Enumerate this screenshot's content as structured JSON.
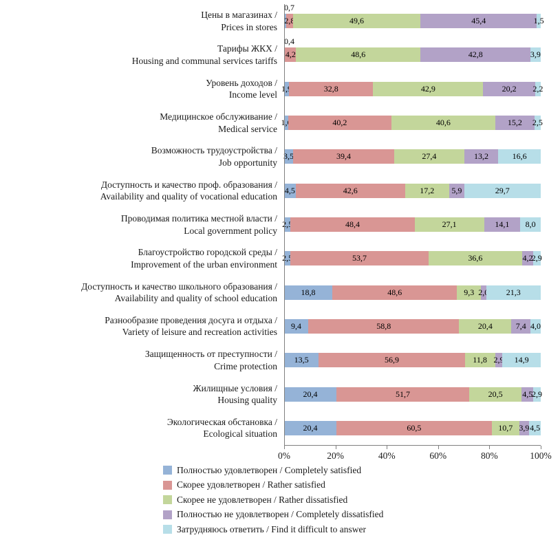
{
  "chart_data": {
    "type": "bar",
    "stacked": true,
    "orientation": "horizontal",
    "unit": "%",
    "xlim": [
      0,
      100
    ],
    "grid": false,
    "legend_position": "bottom-left",
    "decimal_separator": ",",
    "x_ticks": [
      "0%",
      "20%",
      "40%",
      "60%",
      "80%",
      "100%"
    ],
    "categories": [
      {
        "ru": "Цены в магазинах /",
        "en": "Prices in stores"
      },
      {
        "ru": "Тарифы ЖКХ /",
        "en": "Housing and communal services tariffs"
      },
      {
        "ru": "Уровень доходов /",
        "en": "Income level"
      },
      {
        "ru": "Медицинское обслуживание /",
        "en": "Medical service"
      },
      {
        "ru": "Возможность трудоустройства /",
        "en": "Job opportunity"
      },
      {
        "ru": "Доступность и качество проф. образования /",
        "en": "Availability and quality of vocational education"
      },
      {
        "ru": "Проводимая политика местной власти /",
        "en": "Local government policy"
      },
      {
        "ru": "Благоустройство городской среды /",
        "en": "Improvement of the urban environment"
      },
      {
        "ru": "Доступность и качество школьного образования /",
        "en": "Availability and quality of school education"
      },
      {
        "ru": "Разнообразие проведения досуга и отдыха /",
        "en": "Variety of leisure and recreation activities"
      },
      {
        "ru": "Защищенность от преступности /",
        "en": "Crime protection"
      },
      {
        "ru": "Жилищные условия /",
        "en": "Housing quality"
      },
      {
        "ru": "Экологическая обстановка /",
        "en": "Ecological situation"
      }
    ],
    "series": [
      {
        "name": "Полностью удовлетворен / Completely satisfied",
        "color": "#95B3D7",
        "values": [
          0.7,
          0.4,
          1.9,
          1.6,
          3.5,
          4.5,
          2.5,
          2.5,
          18.8,
          9.4,
          13.5,
          20.4,
          20.4
        ]
      },
      {
        "name": "Скорее удовлетворен / Rather satisfied",
        "color": "#D99694",
        "values": [
          2.8,
          4.2,
          32.8,
          40.2,
          39.4,
          42.6,
          48.4,
          53.7,
          48.6,
          58.8,
          56.9,
          51.7,
          60.5
        ]
      },
      {
        "name": "Скорее не удовлетворен / Rather dissatisfied",
        "color": "#C3D69B",
        "values": [
          49.6,
          48.6,
          42.9,
          40.6,
          27.4,
          17.2,
          27.1,
          36.6,
          9.3,
          20.4,
          11.8,
          20.5,
          10.7
        ]
      },
      {
        "name": "Полностью не удовлетворен / Completely dissatisfied",
        "color": "#B2A2C7",
        "values": [
          45.4,
          42.8,
          20.2,
          15.2,
          13.2,
          5.9,
          14.1,
          4.2,
          2.0,
          7.4,
          2.9,
          4.5,
          3.9
        ]
      },
      {
        "name": "Затрудняюсь ответить / Find it difficult to answer",
        "color": "#B7DEE8",
        "values": [
          1.5,
          3.9,
          2.2,
          2.5,
          16.6,
          29.7,
          8.0,
          2.9,
          21.3,
          4.0,
          14.9,
          2.9,
          4.5
        ]
      }
    ]
  }
}
